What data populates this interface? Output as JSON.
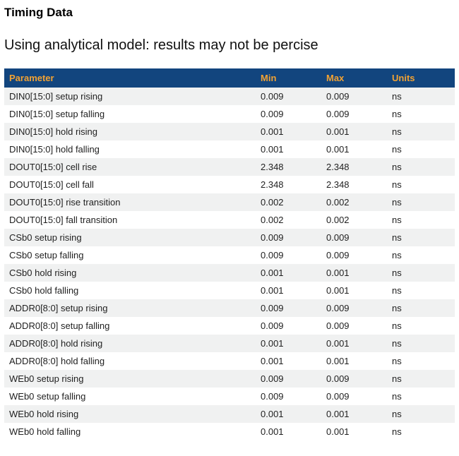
{
  "page": {
    "title": "Timing Data",
    "subtitle": "Using analytical model: results may not be percise"
  },
  "table": {
    "columns": [
      "Parameter",
      "Min",
      "Max",
      "Units"
    ],
    "rows": [
      {
        "parameter": "DIN0[15:0] setup rising",
        "min": "0.009",
        "max": "0.009",
        "units": "ns"
      },
      {
        "parameter": "DIN0[15:0] setup falling",
        "min": "0.009",
        "max": "0.009",
        "units": "ns"
      },
      {
        "parameter": "DIN0[15:0] hold rising",
        "min": "0.001",
        "max": "0.001",
        "units": "ns"
      },
      {
        "parameter": "DIN0[15:0] hold falling",
        "min": "0.001",
        "max": "0.001",
        "units": "ns"
      },
      {
        "parameter": "DOUT0[15:0] cell rise",
        "min": "2.348",
        "max": "2.348",
        "units": "ns"
      },
      {
        "parameter": "DOUT0[15:0] cell fall",
        "min": "2.348",
        "max": "2.348",
        "units": "ns"
      },
      {
        "parameter": "DOUT0[15:0] rise transition",
        "min": "0.002",
        "max": "0.002",
        "units": "ns"
      },
      {
        "parameter": "DOUT0[15:0] fall transition",
        "min": "0.002",
        "max": "0.002",
        "units": "ns"
      },
      {
        "parameter": "CSb0 setup rising",
        "min": "0.009",
        "max": "0.009",
        "units": "ns"
      },
      {
        "parameter": "CSb0 setup falling",
        "min": "0.009",
        "max": "0.009",
        "units": "ns"
      },
      {
        "parameter": "CSb0 hold rising",
        "min": "0.001",
        "max": "0.001",
        "units": "ns"
      },
      {
        "parameter": "CSb0 hold falling",
        "min": "0.001",
        "max": "0.001",
        "units": "ns"
      },
      {
        "parameter": "ADDR0[8:0] setup rising",
        "min": "0.009",
        "max": "0.009",
        "units": "ns"
      },
      {
        "parameter": "ADDR0[8:0] setup falling",
        "min": "0.009",
        "max": "0.009",
        "units": "ns"
      },
      {
        "parameter": "ADDR0[8:0] hold rising",
        "min": "0.001",
        "max": "0.001",
        "units": "ns"
      },
      {
        "parameter": "ADDR0[8:0] hold falling",
        "min": "0.001",
        "max": "0.001",
        "units": "ns"
      },
      {
        "parameter": "WEb0 setup rising",
        "min": "0.009",
        "max": "0.009",
        "units": "ns"
      },
      {
        "parameter": "WEb0 setup falling",
        "min": "0.009",
        "max": "0.009",
        "units": "ns"
      },
      {
        "parameter": "WEb0 hold rising",
        "min": "0.001",
        "max": "0.001",
        "units": "ns"
      },
      {
        "parameter": "WEb0 hold falling",
        "min": "0.001",
        "max": "0.001",
        "units": "ns"
      }
    ]
  },
  "colors": {
    "header_background": "#12457E",
    "header_text": "#F2A233",
    "row_stripe": "#F0F1F1",
    "row_text": "#1F1F1F"
  }
}
